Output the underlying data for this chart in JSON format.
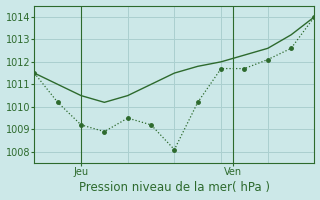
{
  "line1_x": [
    0,
    1,
    2,
    3,
    4,
    5,
    6,
    7,
    8,
    9,
    10,
    11,
    12
  ],
  "line1_y": [
    1011.5,
    1011.0,
    1010.5,
    1010.2,
    1010.5,
    1011.0,
    1011.5,
    1011.8,
    1012.0,
    1012.3,
    1012.6,
    1013.2,
    1014.0
  ],
  "line2_x": [
    0,
    1,
    2,
    3,
    4,
    5,
    6,
    7,
    8,
    9,
    10,
    11,
    12
  ],
  "line2_y": [
    1011.5,
    1010.2,
    1009.2,
    1008.9,
    1009.5,
    1009.2,
    1008.1,
    1010.2,
    1011.7,
    1011.7,
    1012.1,
    1012.6,
    1014.0
  ],
  "ylim": [
    1007.5,
    1014.5
  ],
  "yticks": [
    1008,
    1009,
    1010,
    1011,
    1012,
    1013,
    1014
  ],
  "xlabel": "Pression niveau de la mer( hPa )",
  "line_color": "#2d6a2d",
  "bg_color": "#cce8e8",
  "grid_color": "#aacfcf",
  "tick_label_color": "#2d6a2d",
  "jeu_x": 2,
  "ven_x": 8.5,
  "xlim": [
    0,
    12
  ],
  "xlabel_fontsize": 8.5,
  "tick_fontsize": 7
}
